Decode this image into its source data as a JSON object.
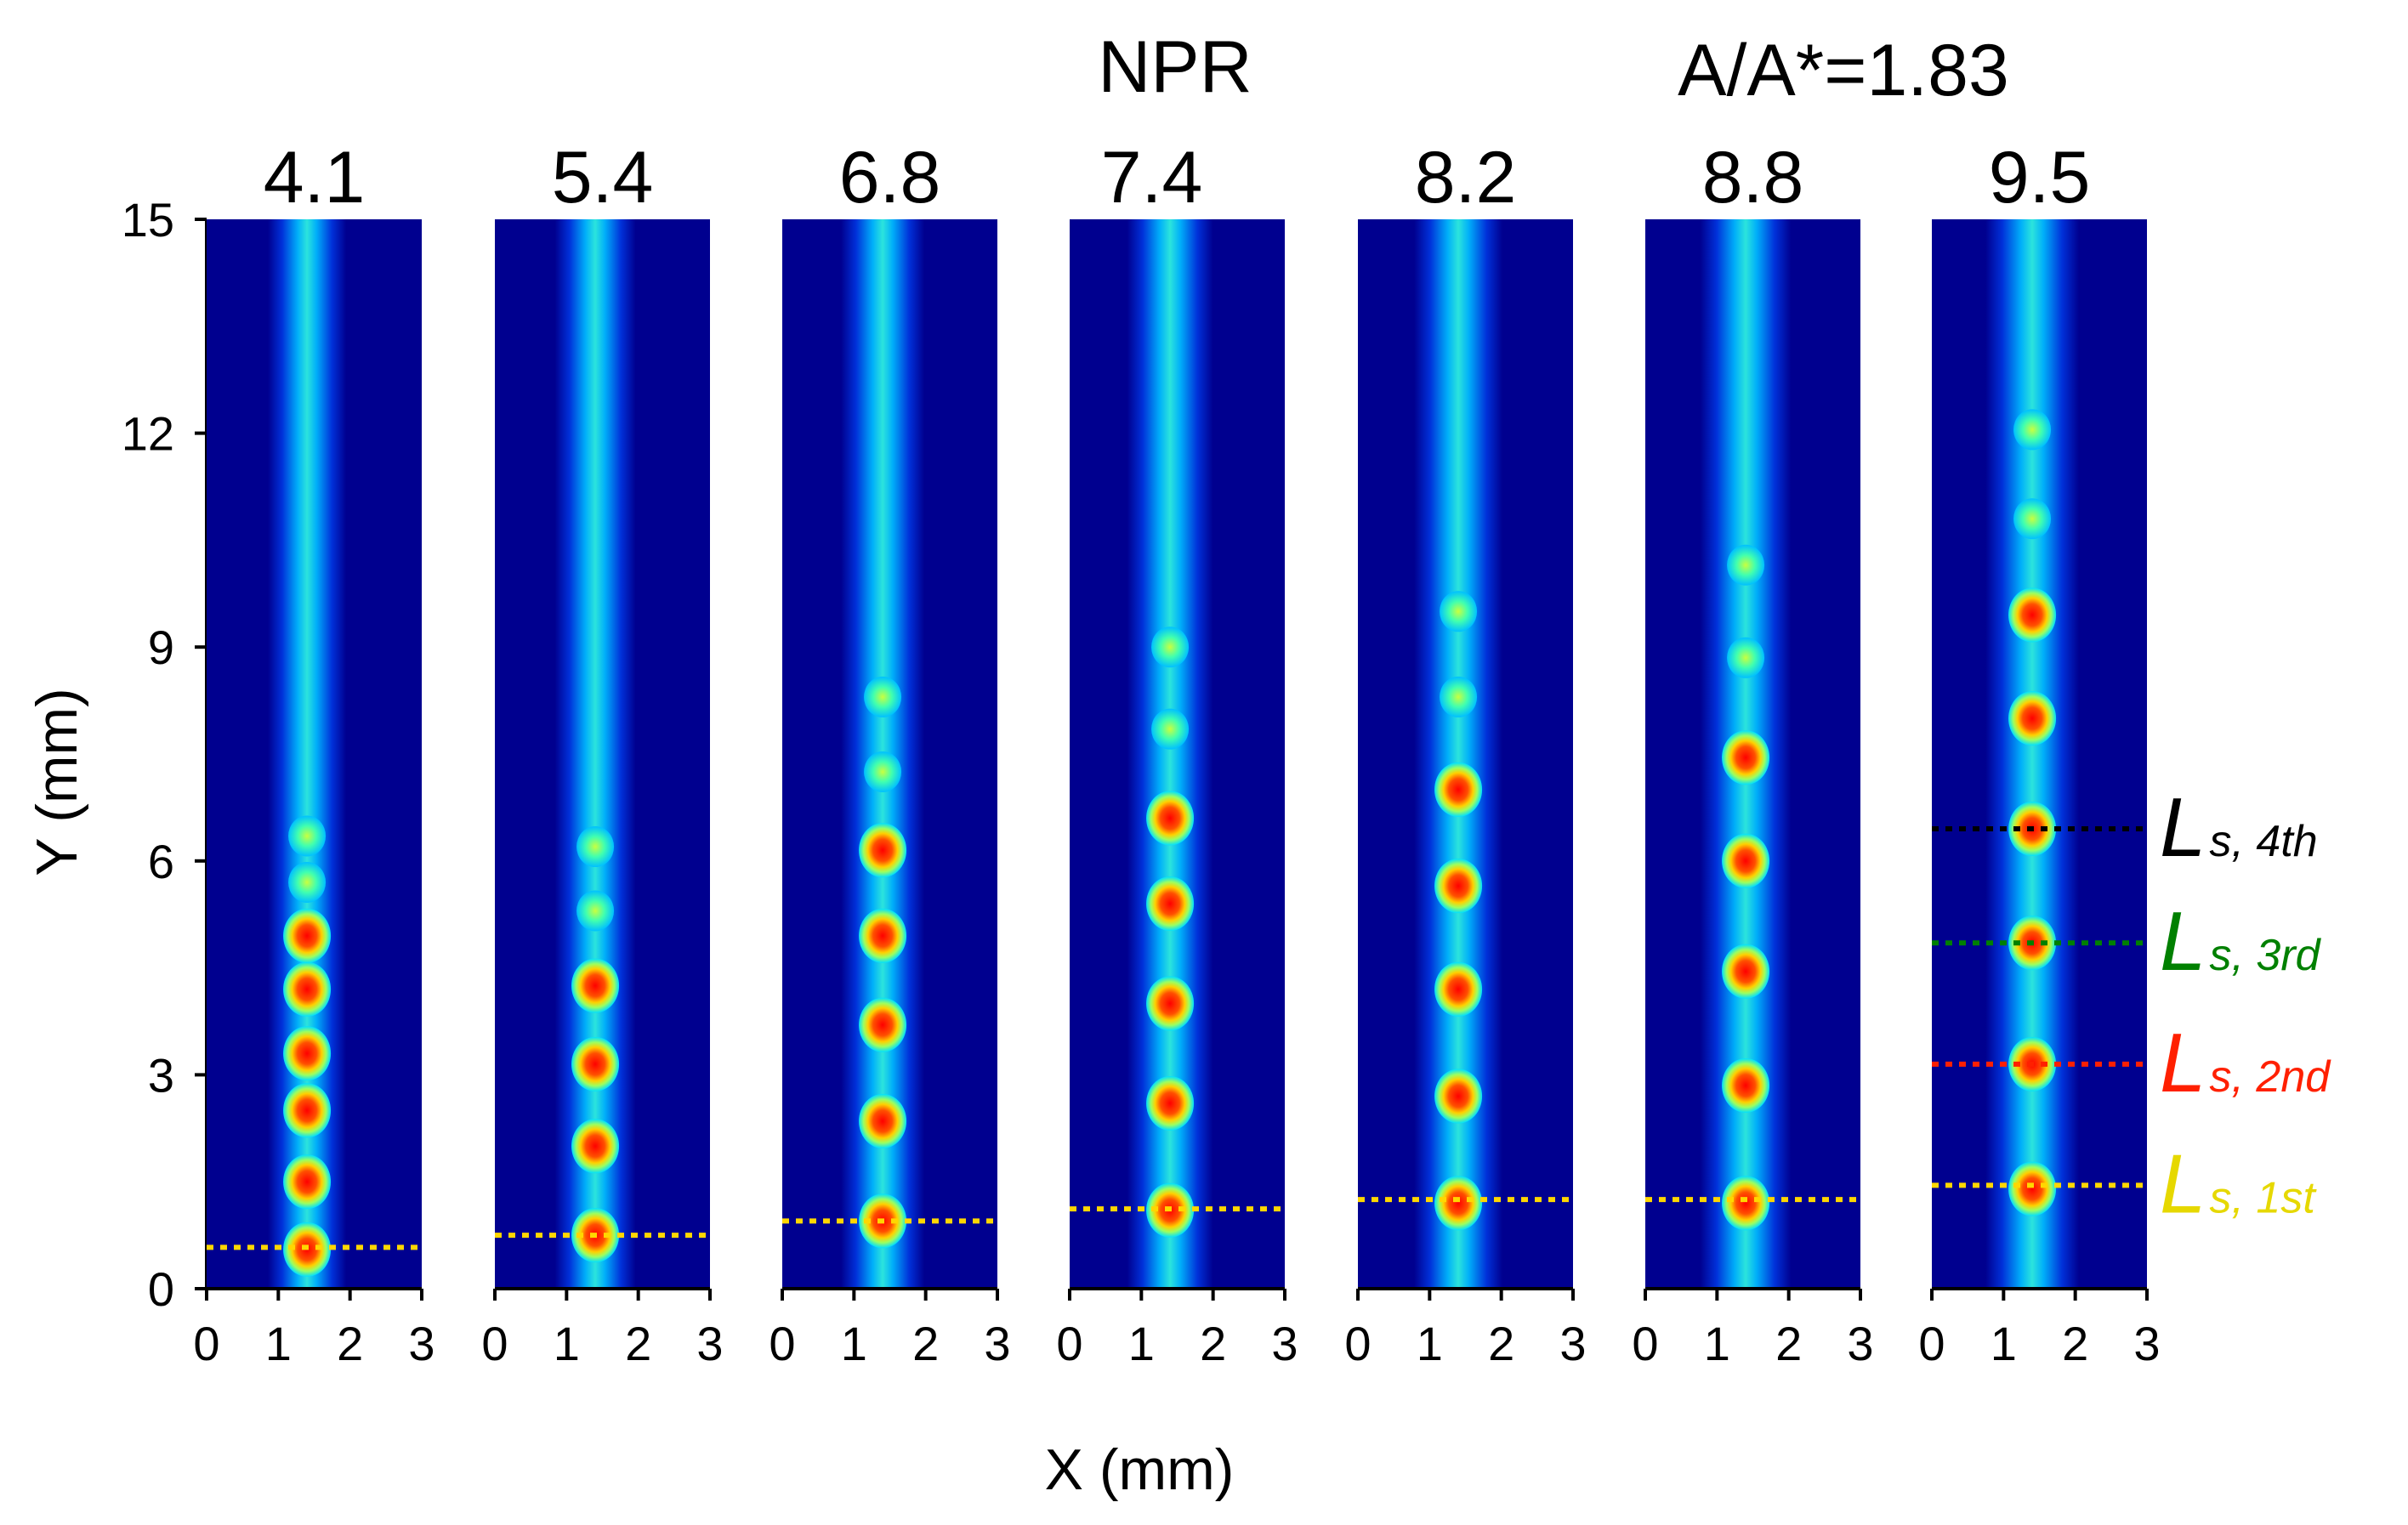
{
  "chart_data": {
    "type": "heatmap",
    "title_parameter": "NPR",
    "area_ratio_label": "A/A*=1.83",
    "xlabel": "X (mm)",
    "ylabel": "Y (mm)",
    "xlim": [
      0,
      3
    ],
    "ylim": [
      0,
      15
    ],
    "x_ticks": [
      "0",
      "1",
      "2",
      "3"
    ],
    "y_ticks": [
      "0",
      "3",
      "6",
      "9",
      "12",
      "15"
    ],
    "jet_center_x": 1.4,
    "panels": [
      {
        "npr": "4.1",
        "shock_cells_y": [
          0.55,
          1.5,
          2.5,
          3.3,
          4.2,
          4.95,
          5.7,
          6.35
        ],
        "ls_1st": 0.58
      },
      {
        "npr": "5.4",
        "shock_cells_y": [
          0.75,
          2.0,
          3.15,
          4.25,
          5.3,
          6.2
        ],
        "ls_1st": 0.75
      },
      {
        "npr": "6.8",
        "shock_cells_y": [
          0.95,
          2.35,
          3.7,
          4.95,
          6.15,
          7.25,
          8.3
        ],
        "ls_1st": 0.95
      },
      {
        "npr": "7.4",
        "shock_cells_y": [
          1.1,
          2.6,
          4.0,
          5.4,
          6.6,
          7.85,
          9.0
        ],
        "ls_1st": 1.12
      },
      {
        "npr": "8.2",
        "shock_cells_y": [
          1.2,
          2.7,
          4.2,
          5.65,
          7.0,
          8.3,
          9.5
        ],
        "ls_1st": 1.25
      },
      {
        "npr": "8.8",
        "shock_cells_y": [
          1.2,
          2.85,
          4.45,
          6.0,
          7.45,
          8.85,
          10.15
        ],
        "ls_1st": 1.25
      },
      {
        "npr": "9.5",
        "shock_cells_y": [
          1.4,
          3.15,
          4.85,
          6.45,
          8.0,
          9.45,
          10.8,
          12.05
        ],
        "ls_1st": 1.45,
        "ls_2nd": 3.15,
        "ls_3rd": 4.85,
        "ls_4th": 6.45
      }
    ],
    "legend": [
      {
        "symbol": "L",
        "sub": "s, 4th",
        "color": "#000000",
        "y": 6.45
      },
      {
        "symbol": "L",
        "sub": "s, 3rd",
        "color": "#008000",
        "y": 4.85
      },
      {
        "symbol": "L",
        "sub": "s, 2nd",
        "color": "#ff2000",
        "y": 3.15
      },
      {
        "symbol": "L",
        "sub": "s, 1st",
        "color": "#e6d800",
        "y": 1.45
      }
    ],
    "colors": {
      "background": "#00008f",
      "ls_1st": "#ffd700"
    }
  }
}
